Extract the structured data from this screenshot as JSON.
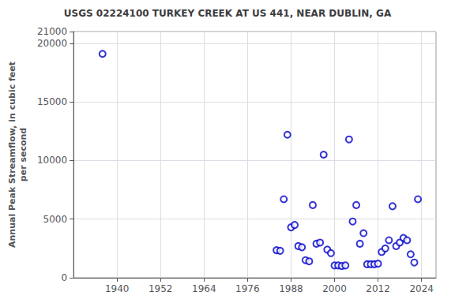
{
  "chart_data": {
    "type": "scatter",
    "title": "USGS 02224100 TURKEY CREEK AT US 441, NEAR DUBLIN, GA",
    "ylabel": "Annual Peak Streamflow, in cubic feet\nper second",
    "x": [
      1936,
      1984,
      1985,
      1986,
      1987,
      1988,
      1989,
      1990,
      1991,
      1992,
      1993,
      1994,
      1995,
      1996,
      1997,
      1998,
      1999,
      2000,
      2001,
      2002,
      2003,
      2004,
      2005,
      2006,
      2007,
      2008,
      2009,
      2010,
      2011,
      2012,
      2013,
      2014,
      2015,
      2016,
      2017,
      2018,
      2019,
      2020,
      2021,
      2022,
      2023
    ],
    "values": [
      19100,
      2350,
      2300,
      6700,
      12200,
      4300,
      4500,
      2700,
      2600,
      1500,
      1400,
      6200,
      2900,
      3000,
      10500,
      2400,
      2100,
      1050,
      1050,
      1000,
      1050,
      11800,
      4800,
      6200,
      2900,
      3800,
      1150,
      1150,
      1150,
      1200,
      2200,
      2500,
      3200,
      6100,
      2700,
      3000,
      3400,
      3200,
      2000,
      1300,
      6700
    ],
    "color": "#0000CC",
    "marker": "emptyCircle",
    "xlim": [
      1928,
      2028
    ],
    "xticks": [
      1940,
      1952,
      1964,
      1976,
      1988,
      2000,
      2012,
      2024
    ],
    "ylim": [
      0,
      21000
    ],
    "yticks": [
      0,
      5000,
      10000,
      15000,
      20000
    ],
    "grid": true
  }
}
